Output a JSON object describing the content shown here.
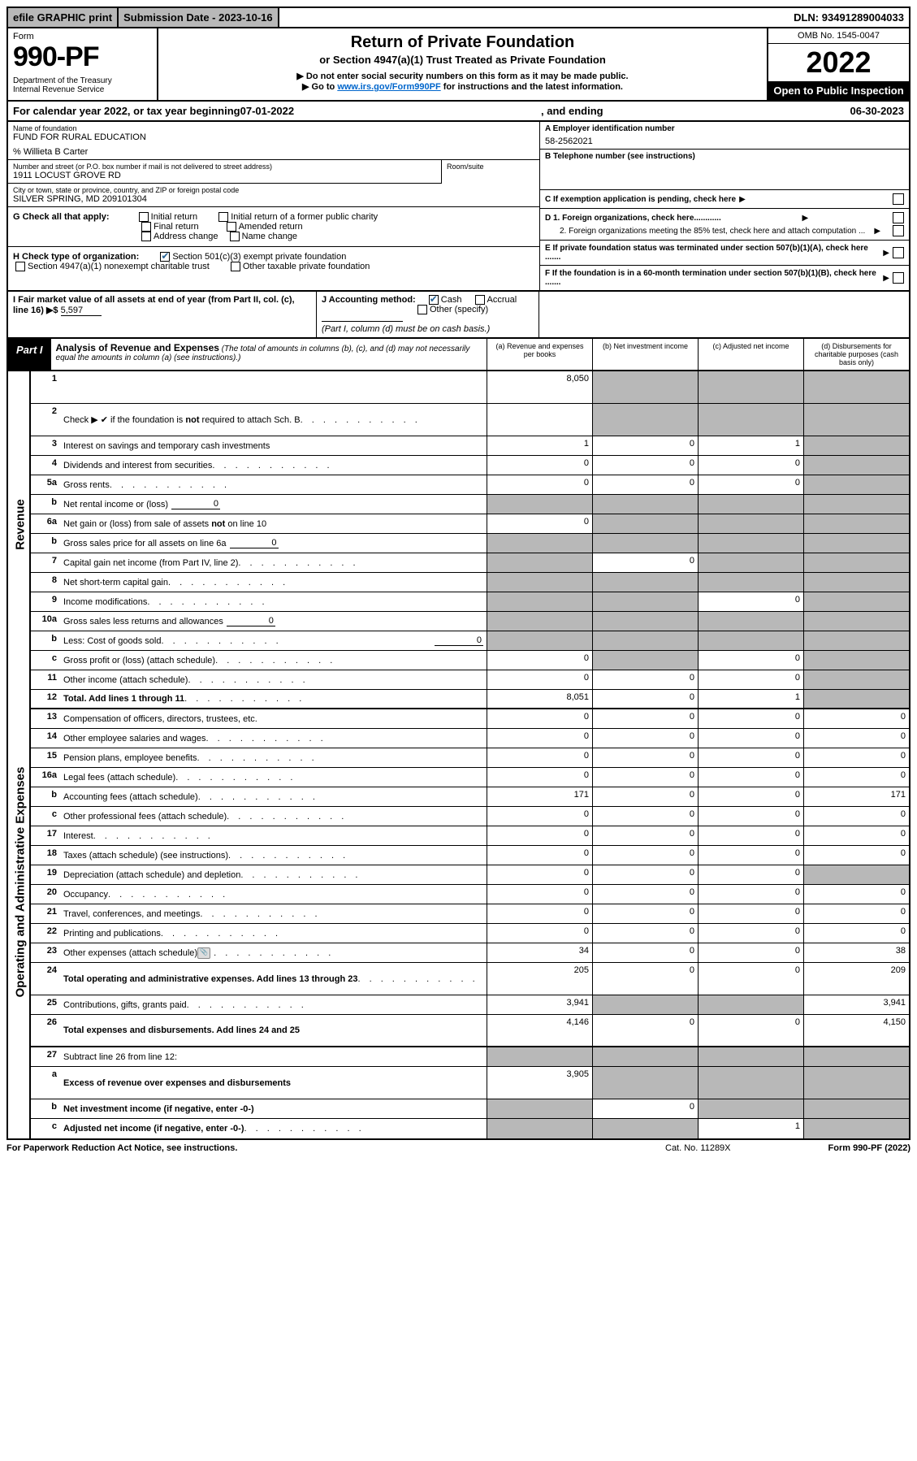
{
  "topbar": {
    "efile": "efile GRAPHIC print",
    "subdate_label": "Submission Date - ",
    "subdate": "2023-10-16",
    "dln_label": "DLN: ",
    "dln": "93491289004033"
  },
  "header": {
    "form": "Form",
    "formno": "990-PF",
    "dept": "Department of the Treasury\nInternal Revenue Service",
    "title": "Return of Private Foundation",
    "sub1": "or Section 4947(a)(1) Trust Treated as Private Foundation",
    "sub2": "▶ Do not enter social security numbers on this form as it may be made public.",
    "sub3_pre": "▶ Go to ",
    "sub3_link": "www.irs.gov/Form990PF",
    "sub3_post": " for instructions and the latest information.",
    "omb": "OMB No. 1545-0047",
    "year": "2022",
    "inspect": "Open to Public Inspection"
  },
  "cal": {
    "pre": "For calendar year 2022, or tax year beginning ",
    "begin": "07-01-2022",
    "mid": ", and ending ",
    "end": "06-30-2023"
  },
  "info": {
    "name_label": "Name of foundation",
    "name": "FUND FOR RURAL EDUCATION",
    "care": "% Willieta B Carter",
    "addr_label": "Number and street (or P.O. box number if mail is not delivered to street address)",
    "addr": "1911 LOCUST GROVE RD",
    "room_label": "Room/suite",
    "city_label": "City or town, state or province, country, and ZIP or foreign postal code",
    "city": "SILVER SPRING, MD  209101304",
    "a_label": "A Employer identification number",
    "ein": "58-2562021",
    "b_label": "B Telephone number (see instructions)",
    "c_label": "C If exemption application is pending, check here",
    "d1": "D 1. Foreign organizations, check here............",
    "d2": "2. Foreign organizations meeting the 85% test, check here and attach computation ...",
    "e": "E  If private foundation status was terminated under section 507(b)(1)(A), check here .......",
    "f": "F  If the foundation is in a 60-month termination under section 507(b)(1)(B), check here .......",
    "g_label": "G Check all that apply:",
    "g_opts": [
      "Initial return",
      "Initial return of a former public charity",
      "Final return",
      "Amended return",
      "Address change",
      "Name change"
    ],
    "h_label": "H Check type of organization:",
    "h_opts": [
      "Section 501(c)(3) exempt private foundation",
      "Section 4947(a)(1) nonexempt charitable trust",
      "Other taxable private foundation"
    ],
    "i_label": "I Fair market value of all assets at end of year (from Part II, col. (c), line 16) ▶$",
    "i_val": "5,597",
    "j_label": "J Accounting method:",
    "j_opts": [
      "Cash",
      "Accrual",
      "Other (specify)"
    ],
    "j_note": "(Part I, column (d) must be on cash basis.)"
  },
  "part1": {
    "label": "Part I",
    "title": "Analysis of Revenue and Expenses",
    "note": "(The total of amounts in columns (b), (c), and (d) may not necessarily equal the amounts in column (a) (see instructions).)",
    "col_a": "(a) Revenue and expenses per books",
    "col_b": "(b) Net investment income",
    "col_c": "(c) Adjusted net income",
    "col_d": "(d) Disbursements for charitable purposes (cash basis only)"
  },
  "sidelabels": {
    "rev": "Revenue",
    "exp": "Operating and Administrative Expenses"
  },
  "rows": [
    {
      "n": "1",
      "d": "",
      "a": "8,050",
      "b": "",
      "c": "",
      "bg": true,
      "cg": true,
      "dg": true,
      "tall": true
    },
    {
      "n": "2",
      "d": "Check ▶ ✔ if the foundation is not required to attach Sch. B",
      "dots": true,
      "tall": true,
      "noval": true,
      "bg": true,
      "cg": true,
      "dg": true
    },
    {
      "n": "3",
      "d": "Interest on savings and temporary cash investments",
      "a": "1",
      "b": "0",
      "c": "1",
      "dg": true
    },
    {
      "n": "4",
      "d": "Dividends and interest from securities",
      "dots": true,
      "a": "0",
      "b": "0",
      "c": "0",
      "dg": true
    },
    {
      "n": "5a",
      "d": "Gross rents",
      "dots": true,
      "a": "0",
      "b": "0",
      "c": "0",
      "dg": true
    },
    {
      "n": "b",
      "d": "Net rental income or (loss)",
      "inline": "0",
      "ag": true,
      "bg": true,
      "cg": true,
      "dg": true
    },
    {
      "n": "6a",
      "d": "Net gain or (loss) from sale of assets not on line 10",
      "a": "0",
      "bg": true,
      "cg": true,
      "dg": true
    },
    {
      "n": "b",
      "d": "Gross sales price for all assets on line 6a",
      "inline": "0",
      "ag": true,
      "bg": true,
      "cg": true,
      "dg": true
    },
    {
      "n": "7",
      "d": "Capital gain net income (from Part IV, line 2)",
      "dots": true,
      "ag": true,
      "b": "0",
      "cg": true,
      "dg": true
    },
    {
      "n": "8",
      "d": "Net short-term capital gain",
      "dots": true,
      "ag": true,
      "bg": true,
      "cg": true,
      "dg": true
    },
    {
      "n": "9",
      "d": "Income modifications",
      "dots": true,
      "ag": true,
      "bg": true,
      "c": "0",
      "dg": true
    },
    {
      "n": "10a",
      "d": "Gross sales less returns and allowances",
      "inline": "0",
      "ag": true,
      "bg": true,
      "cg": true,
      "dg": true
    },
    {
      "n": "b",
      "d": "Less: Cost of goods sold",
      "dots": true,
      "inline": "0",
      "ag": true,
      "bg": true,
      "cg": true,
      "dg": true
    },
    {
      "n": "c",
      "d": "Gross profit or (loss) (attach schedule)",
      "dots": true,
      "a": "0",
      "bg": true,
      "c": "0",
      "dg": true
    },
    {
      "n": "11",
      "d": "Other income (attach schedule)",
      "dots": true,
      "a": "0",
      "b": "0",
      "c": "0",
      "dg": true
    },
    {
      "n": "12",
      "d": "Total. Add lines 1 through 11",
      "dots": true,
      "bold": true,
      "a": "8,051",
      "b": "0",
      "c": "1",
      "dg": true
    },
    {
      "n": "13",
      "d": "Compensation of officers, directors, trustees, etc.",
      "a": "0",
      "b": "0",
      "c": "0",
      "dd": "0"
    },
    {
      "n": "14",
      "d": "Other employee salaries and wages",
      "dots": true,
      "a": "0",
      "b": "0",
      "c": "0",
      "dd": "0"
    },
    {
      "n": "15",
      "d": "Pension plans, employee benefits",
      "dots": true,
      "a": "0",
      "b": "0",
      "c": "0",
      "dd": "0"
    },
    {
      "n": "16a",
      "d": "Legal fees (attach schedule)",
      "dots": true,
      "a": "0",
      "b": "0",
      "c": "0",
      "dd": "0"
    },
    {
      "n": "b",
      "d": "Accounting fees (attach schedule)",
      "dots": true,
      "a": "171",
      "b": "0",
      "c": "0",
      "dd": "171"
    },
    {
      "n": "c",
      "d": "Other professional fees (attach schedule)",
      "dots": true,
      "a": "0",
      "b": "0",
      "c": "0",
      "dd": "0"
    },
    {
      "n": "17",
      "d": "Interest",
      "dots": true,
      "a": "0",
      "b": "0",
      "c": "0",
      "dd": "0"
    },
    {
      "n": "18",
      "d": "Taxes (attach schedule) (see instructions)",
      "dots": true,
      "a": "0",
      "b": "0",
      "c": "0",
      "dd": "0"
    },
    {
      "n": "19",
      "d": "Depreciation (attach schedule) and depletion",
      "dots": true,
      "a": "0",
      "b": "0",
      "c": "0",
      "dg": true
    },
    {
      "n": "20",
      "d": "Occupancy",
      "dots": true,
      "a": "0",
      "b": "0",
      "c": "0",
      "dd": "0"
    },
    {
      "n": "21",
      "d": "Travel, conferences, and meetings",
      "dots": true,
      "a": "0",
      "b": "0",
      "c": "0",
      "dd": "0"
    },
    {
      "n": "22",
      "d": "Printing and publications",
      "dots": true,
      "a": "0",
      "b": "0",
      "c": "0",
      "dd": "0"
    },
    {
      "n": "23",
      "d": "Other expenses (attach schedule)",
      "dots": true,
      "icon": true,
      "a": "34",
      "b": "0",
      "c": "0",
      "dd": "38"
    },
    {
      "n": "24",
      "d": "Total operating and administrative expenses. Add lines 13 through 23",
      "dots": true,
      "bold": true,
      "a": "205",
      "b": "0",
      "c": "0",
      "dd": "209",
      "tall": true
    },
    {
      "n": "25",
      "d": "Contributions, gifts, grants paid",
      "dots": true,
      "a": "3,941",
      "bg": true,
      "cg": true,
      "dd": "3,941"
    },
    {
      "n": "26",
      "d": "Total expenses and disbursements. Add lines 24 and 25",
      "bold": true,
      "a": "4,146",
      "b": "0",
      "c": "0",
      "dd": "4,150",
      "tall": true
    },
    {
      "n": "27",
      "d": "Subtract line 26 from line 12:",
      "ag": true,
      "bg": true,
      "cg": true,
      "dg": true
    },
    {
      "n": "a",
      "d": "Excess of revenue over expenses and disbursements",
      "bold": true,
      "a": "3,905",
      "bg": true,
      "cg": true,
      "dg": true,
      "tall": true
    },
    {
      "n": "b",
      "d": "Net investment income (if negative, enter -0-)",
      "bold": true,
      "ag": true,
      "b": "0",
      "cg": true,
      "dg": true
    },
    {
      "n": "c",
      "d": "Adjusted net income (if negative, enter -0-)",
      "dots": true,
      "bold": true,
      "ag": true,
      "bg": true,
      "c": "1",
      "dg": true
    }
  ],
  "footer": {
    "f1": "For Paperwork Reduction Act Notice, see instructions.",
    "f2": "Cat. No. 11289X",
    "f3": "Form 990-PF (2022)"
  },
  "colors": {
    "grey": "#b8b8b8",
    "link": "#0066cc",
    "check": "#2a6496"
  }
}
